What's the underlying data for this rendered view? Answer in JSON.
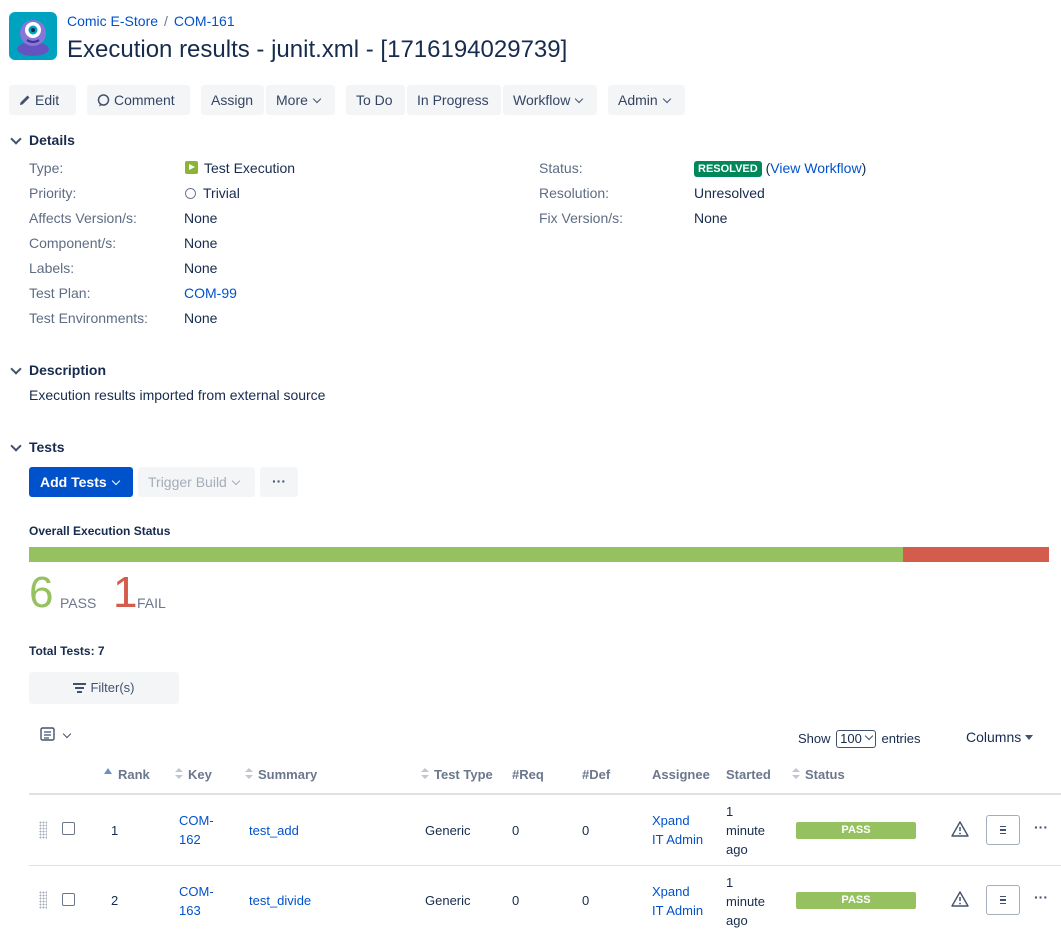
{
  "breadcrumb": {
    "project": "Comic E-Store",
    "separator": "/",
    "parent_key": "COM-161"
  },
  "title": "Execution results - junit.xml - [1716194029739]",
  "toolbar": {
    "edit": "Edit",
    "comment": "Comment",
    "assign": "Assign",
    "more": "More",
    "todo": "To Do",
    "in_progress": "In Progress",
    "workflow": "Workflow",
    "admin": "Admin"
  },
  "details": {
    "heading": "Details",
    "type_label": "Type:",
    "type_value": "Test Execution",
    "priority_label": "Priority:",
    "priority_value": "Trivial",
    "affects_label": "Affects Version/s:",
    "affects_value": "None",
    "component_label": "Component/s:",
    "component_value": "None",
    "labels_label": "Labels:",
    "labels_value": "None",
    "testplan_label": "Test Plan:",
    "testplan_value": "COM-99",
    "testenv_label": "Test Environments:",
    "testenv_value": "None",
    "status_label": "Status:",
    "status_value": "RESOLVED",
    "view_workflow": "View Workflow",
    "resolution_label": "Resolution:",
    "resolution_value": "Unresolved",
    "fixversion_label": "Fix Version/s:",
    "fixversion_value": "None"
  },
  "description": {
    "heading": "Description",
    "text": "Execution results imported from external source"
  },
  "tests": {
    "heading": "Tests",
    "add_tests": "Add Tests",
    "trigger_build": "Trigger Build",
    "more": "···",
    "overall_status_label": "Overall Execution Status",
    "pass_count": "6",
    "pass_label": "PASS",
    "fail_count": "1",
    "fail_label": "FAIL",
    "pass_fraction": 0.857,
    "total": "Total Tests: 7",
    "filter": "Filter(s)",
    "show_label": "Show",
    "entries_value": "100",
    "entries_label": "entries",
    "columns_label": "Columns",
    "headers": {
      "rank": "Rank",
      "key": "Key",
      "summary": "Summary",
      "test_type": "Test Type",
      "req": "#Req",
      "def": "#Def",
      "assignee": "Assignee",
      "started": "Started",
      "status": "Status"
    },
    "rows": [
      {
        "rank": "1",
        "key_line1": "COM-",
        "key_line2": "162",
        "summary": "test_add",
        "test_type": "Generic",
        "req": "0",
        "def": "0",
        "assignee_line1": "Xpand",
        "assignee_line2": "IT Admin",
        "started_line1": "1",
        "started_line2": "minute",
        "started_line3": "ago",
        "status": "PASS"
      },
      {
        "rank": "2",
        "key_line1": "COM-",
        "key_line2": "163",
        "summary": "test_divide",
        "test_type": "Generic",
        "req": "0",
        "def": "0",
        "assignee_line1": "Xpand",
        "assignee_line2": "IT Admin",
        "started_line1": "1",
        "started_line2": "minute",
        "started_line3": "ago",
        "status": "PASS"
      }
    ]
  },
  "colors": {
    "primary": "#0052cc",
    "pass": "#95c160",
    "fail": "#d45c4c",
    "resolved": "#00875a"
  }
}
